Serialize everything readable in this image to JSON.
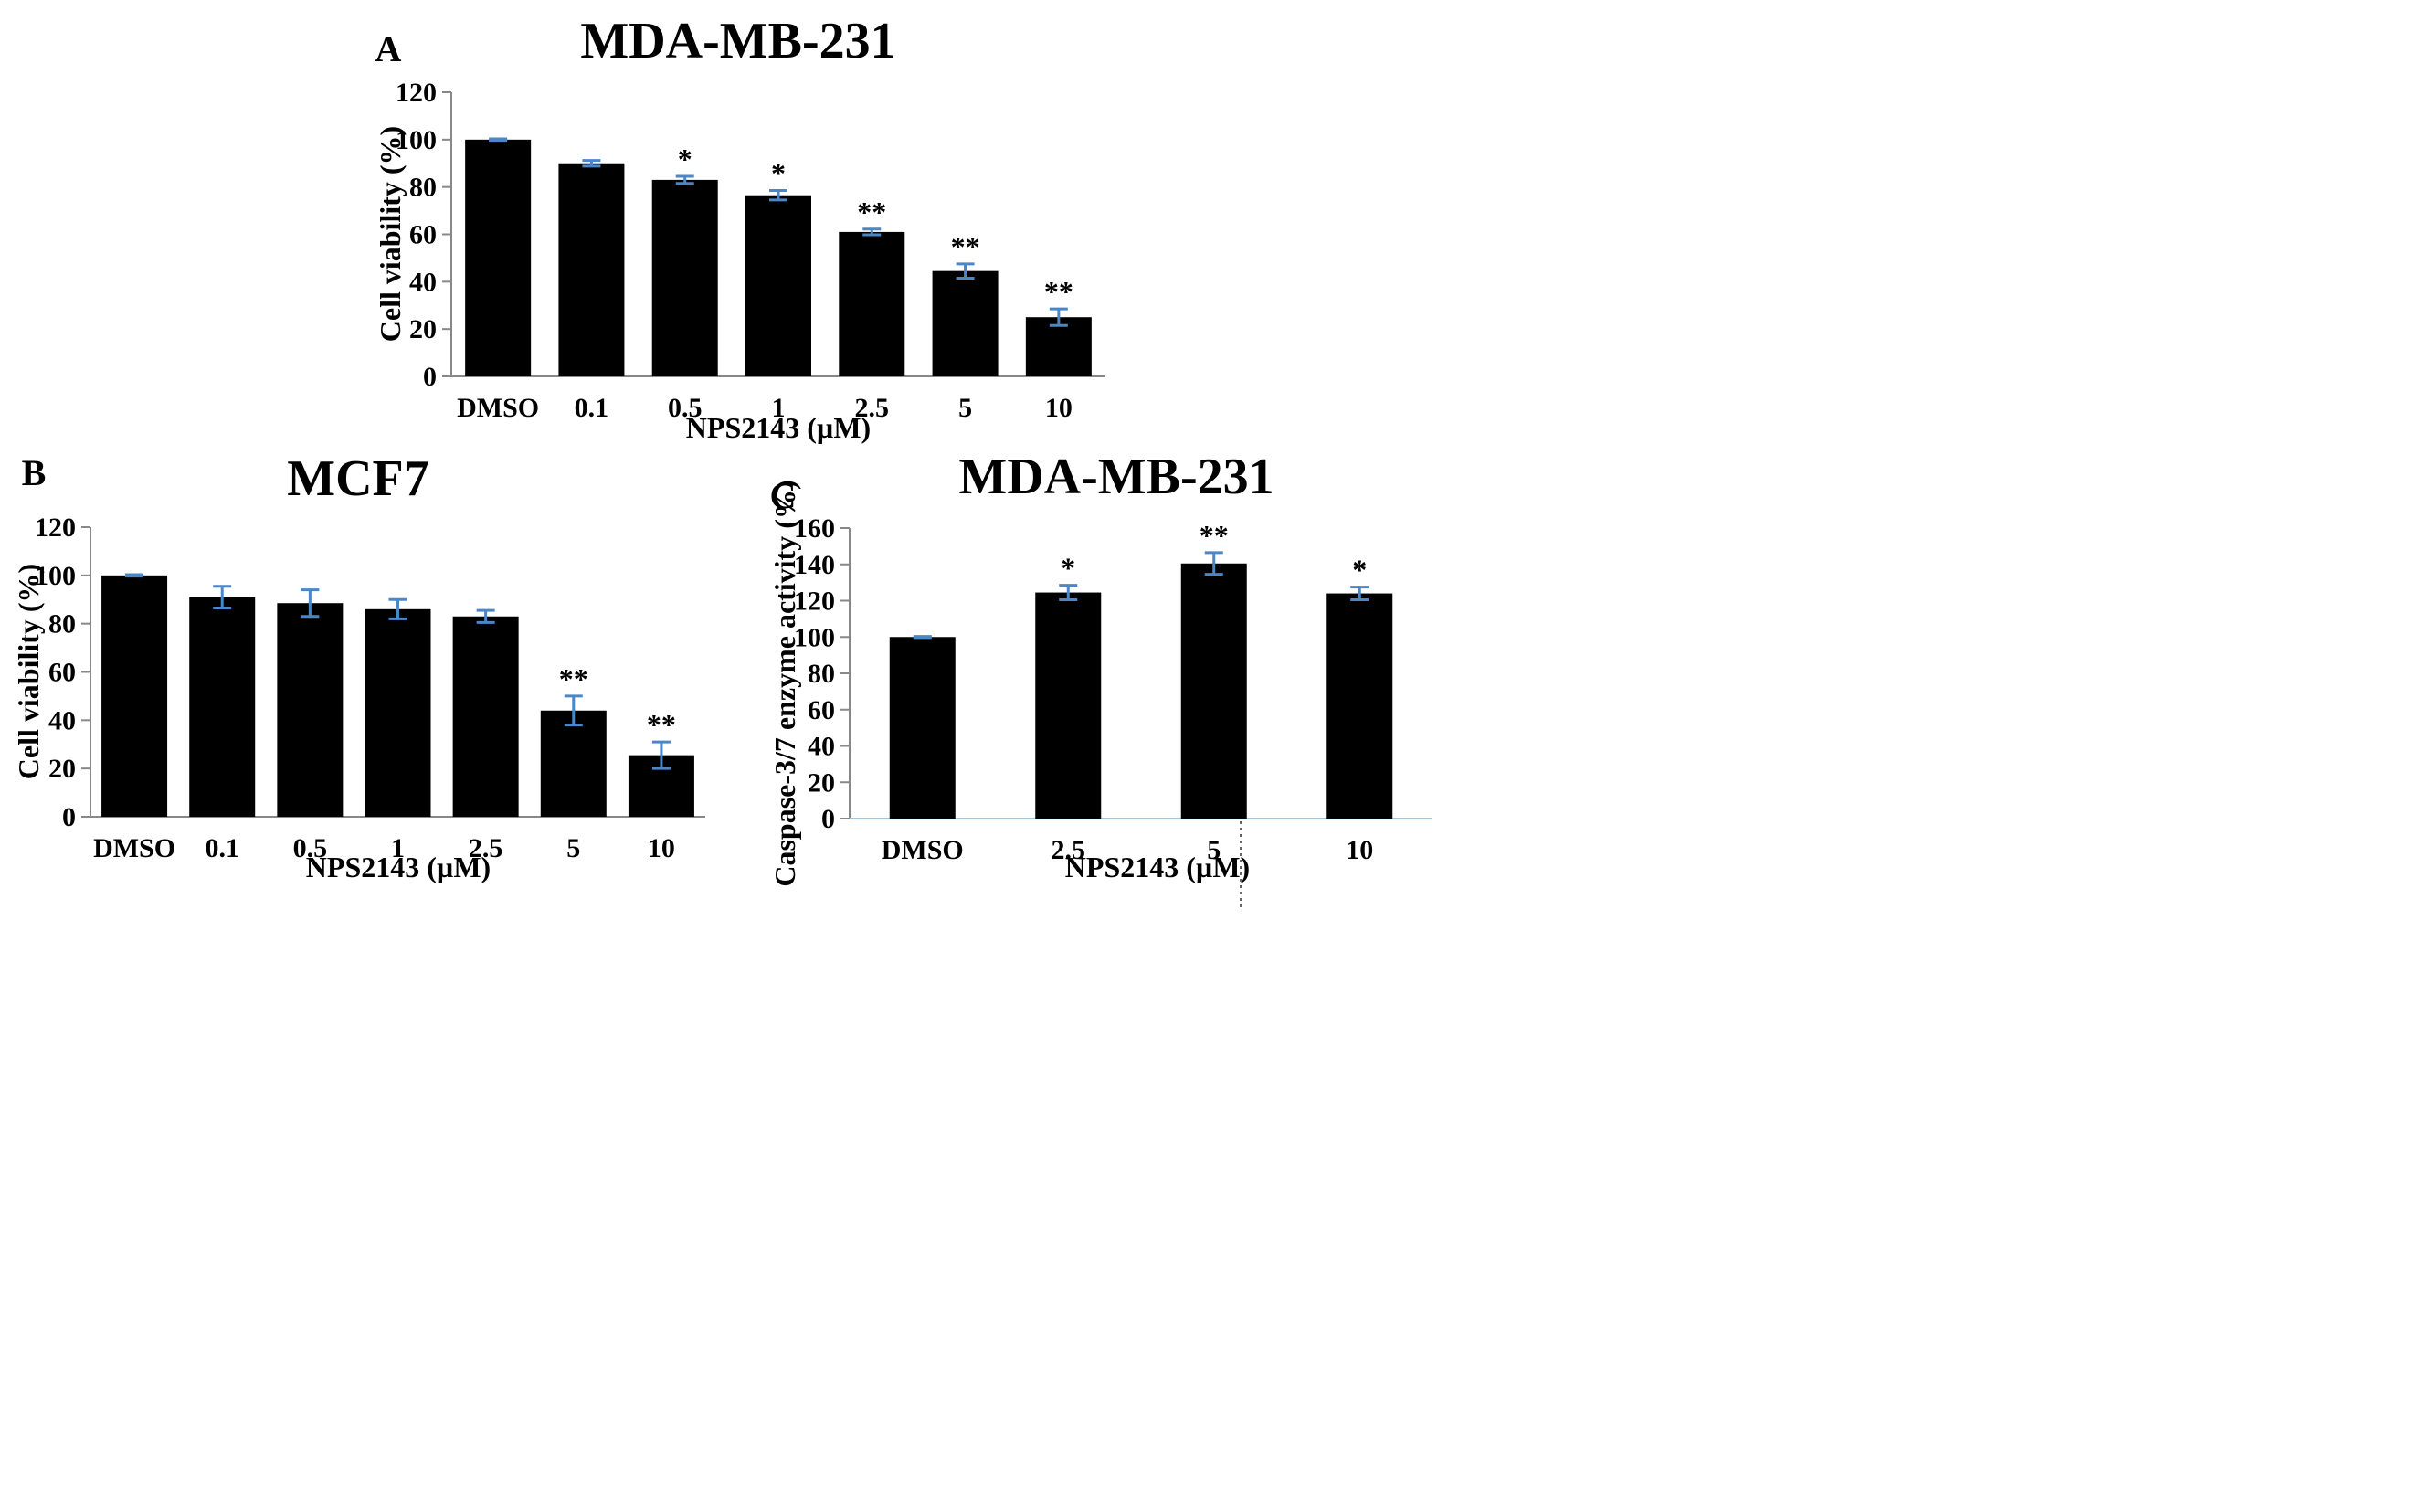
{
  "chart_data": [
    {
      "panel": "A",
      "type": "bar",
      "title": "MDA-MB-231",
      "xlabel": "NPS2143 (µM)",
      "ylabel": "Cell viability (%)",
      "categories": [
        "DMSO",
        "0.1",
        "0.5",
        "1",
        "2.5",
        "5",
        "10"
      ],
      "values": [
        100,
        90,
        83,
        76.5,
        61,
        44.5,
        25
      ],
      "errors": [
        0.3,
        1.2,
        1.5,
        2,
        1.2,
        3,
        3.5
      ],
      "significance": [
        "",
        "",
        "*",
        "*",
        "**",
        "**",
        "**"
      ],
      "ylim": [
        0,
        120
      ],
      "yticks": [
        0,
        20,
        40,
        60,
        80,
        100,
        120
      ],
      "grid": false
    },
    {
      "panel": "B",
      "type": "bar",
      "title": "MCF7",
      "xlabel": "NPS2143 (µM)",
      "ylabel": "Cell viability (%)",
      "categories": [
        "DMSO",
        "0.1",
        "0.5",
        "1",
        "2.5",
        "5",
        "10"
      ],
      "values": [
        100,
        91,
        88.5,
        86,
        83,
        44,
        25.5
      ],
      "errors": [
        0.3,
        4.5,
        5.5,
        4,
        2.5,
        6,
        5.5
      ],
      "significance": [
        "",
        "",
        "",
        "",
        "",
        "**",
        "**"
      ],
      "ylim": [
        0,
        120
      ],
      "yticks": [
        0,
        20,
        40,
        60,
        80,
        100,
        120
      ],
      "grid": false
    },
    {
      "panel": "C",
      "type": "bar",
      "title": "MDA-MB-231",
      "xlabel": "NPS2143 (µM)",
      "ylabel": "Caspase-3/7 enzyme activity (%)",
      "categories": [
        "DMSO",
        "2.5",
        "5",
        "10"
      ],
      "values": [
        100,
        124.5,
        140.5,
        124
      ],
      "errors": [
        0.3,
        4,
        6,
        3.5
      ],
      "significance": [
        "",
        "*",
        "**",
        "*"
      ],
      "ylim": [
        0,
        160
      ],
      "yticks": [
        0,
        20,
        40,
        60,
        80,
        100,
        120,
        140,
        160
      ],
      "grid": false
    }
  ],
  "colors": {
    "bar": "#000000",
    "error_bar": "#4a86c8",
    "axis": "#888888",
    "axis_c": "#9ec6e6",
    "divider": "#666666"
  }
}
